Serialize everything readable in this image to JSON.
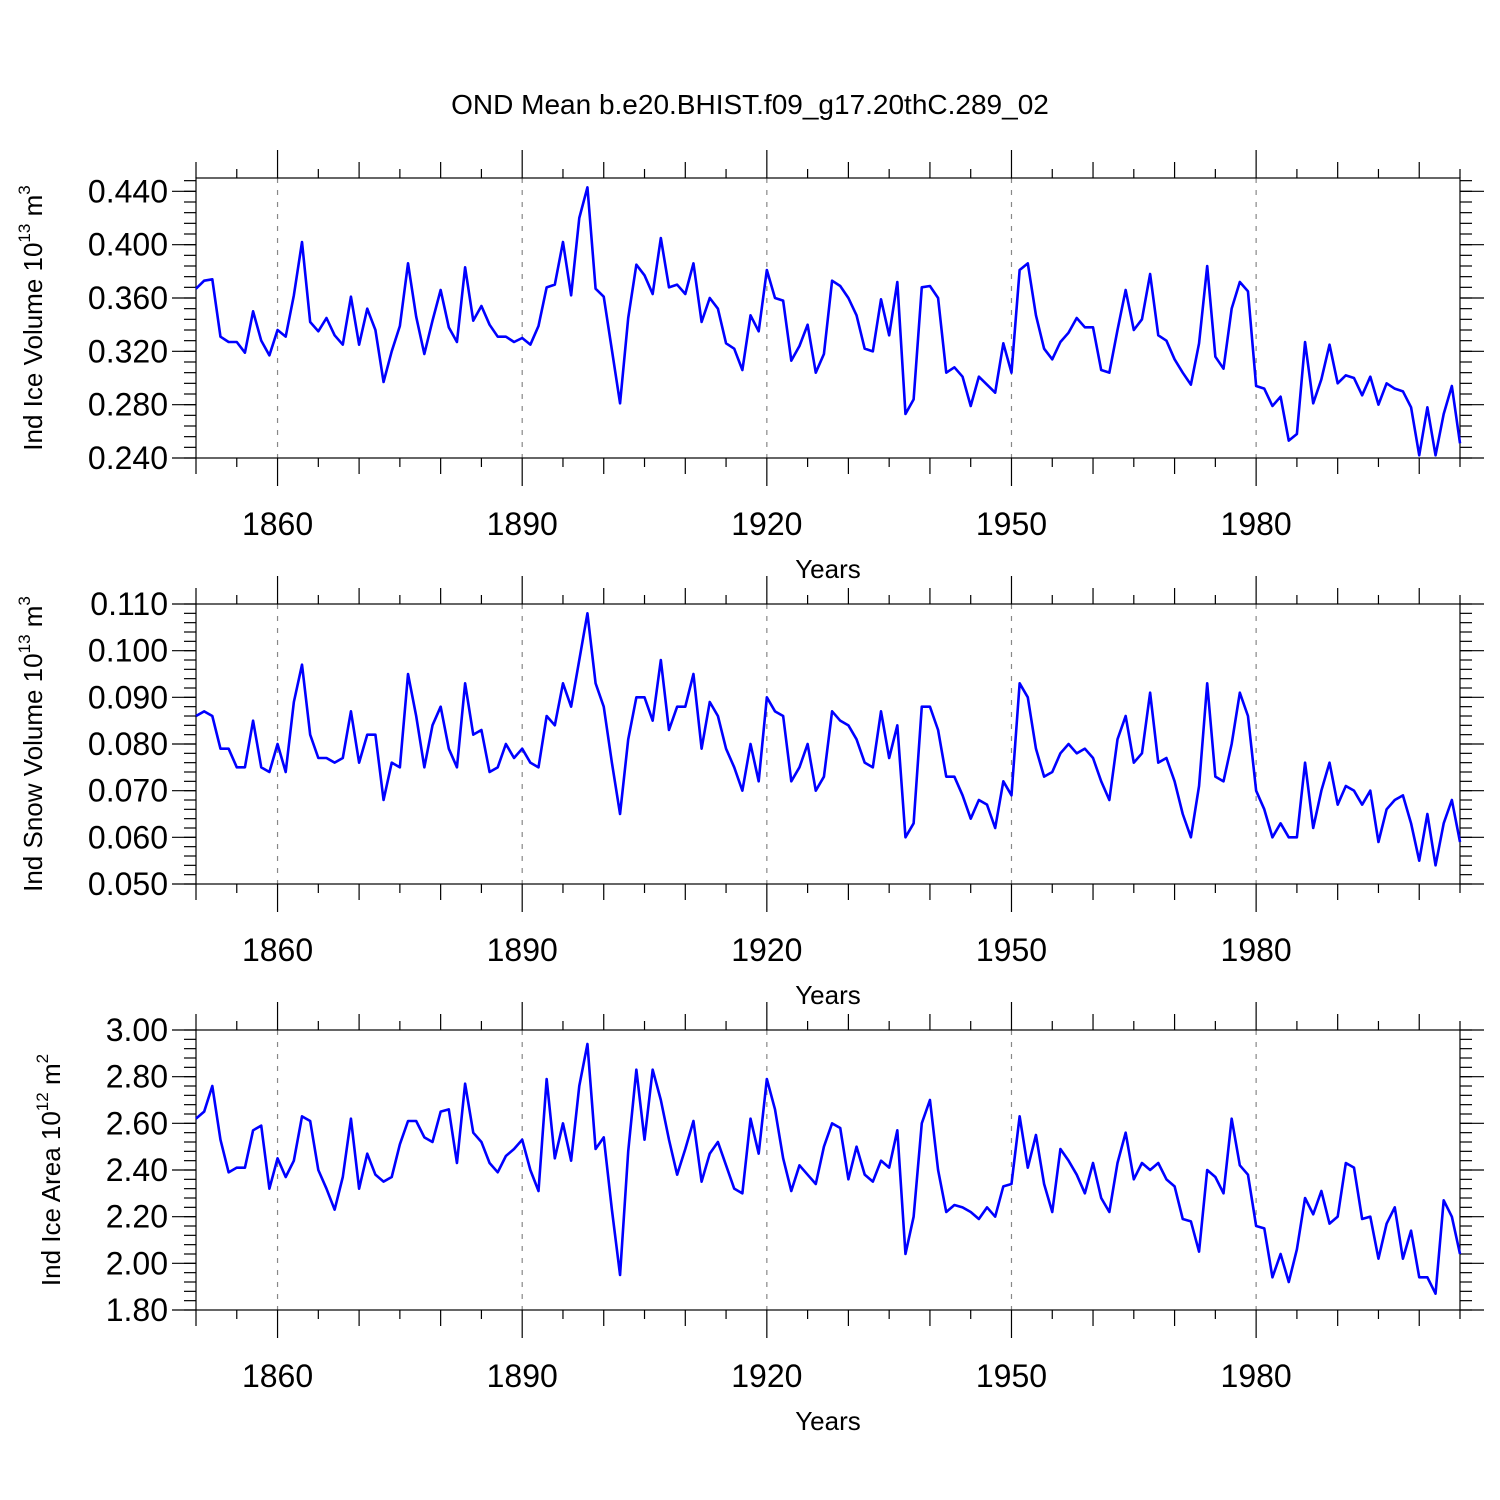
{
  "title": "OND Mean b.e20.BHIST.f09_g17.20thC.289_02",
  "line_color": "#0000ff",
  "chart_data": [
    {
      "type": "line",
      "ylabel": "Ind Ice Volume 10",
      "ylabel_exp": "13",
      "ylabel_unit": "m",
      "ylabel_unit_exp": "3",
      "xlabel": "Years",
      "xlim": [
        1850,
        2005
      ],
      "ylim": [
        0.24,
        0.45
      ],
      "yticks": [
        "0.240",
        "0.280",
        "0.320",
        "0.360",
        "0.400",
        "0.440"
      ],
      "yticks_values": [
        0.24,
        0.28,
        0.32,
        0.36,
        0.4,
        0.44
      ],
      "xticks": [
        "1860",
        "1890",
        "1920",
        "1950",
        "1980"
      ],
      "xticks_values": [
        1860,
        1890,
        1920,
        1950,
        1980
      ],
      "grid": "dashed vertical lines at x ticks",
      "x_start": 1850,
      "values": [
        0.367,
        0.373,
        0.374,
        0.331,
        0.327,
        0.327,
        0.319,
        0.35,
        0.328,
        0.317,
        0.336,
        0.331,
        0.362,
        0.402,
        0.342,
        0.335,
        0.345,
        0.332,
        0.325,
        0.361,
        0.325,
        0.352,
        0.336,
        0.297,
        0.32,
        0.339,
        0.386,
        0.346,
        0.318,
        0.343,
        0.366,
        0.338,
        0.327,
        0.383,
        0.343,
        0.354,
        0.34,
        0.331,
        0.331,
        0.327,
        0.33,
        0.325,
        0.339,
        0.368,
        0.37,
        0.402,
        0.362,
        0.42,
        0.443,
        0.367,
        0.361,
        0.321,
        0.281,
        0.345,
        0.385,
        0.377,
        0.363,
        0.405,
        0.368,
        0.37,
        0.363,
        0.386,
        0.342,
        0.36,
        0.352,
        0.326,
        0.322,
        0.306,
        0.347,
        0.335,
        0.381,
        0.36,
        0.358,
        0.313,
        0.324,
        0.34,
        0.304,
        0.318,
        0.373,
        0.369,
        0.36,
        0.347,
        0.322,
        0.32,
        0.359,
        0.332,
        0.372,
        0.273,
        0.284,
        0.368,
        0.369,
        0.36,
        0.304,
        0.308,
        0.301,
        0.279,
        0.301,
        0.295,
        0.289,
        0.326,
        0.304,
        0.381,
        0.386,
        0.347,
        0.322,
        0.314,
        0.327,
        0.334,
        0.345,
        0.338,
        0.338,
        0.306,
        0.304,
        0.336,
        0.366,
        0.336,
        0.344,
        0.378,
        0.332,
        0.328,
        0.314,
        0.304,
        0.295,
        0.326,
        0.384,
        0.316,
        0.307,
        0.352,
        0.372,
        0.365,
        0.294,
        0.292,
        0.279,
        0.286,
        0.253,
        0.258,
        0.327,
        0.281,
        0.299,
        0.325,
        0.296,
        0.302,
        0.3,
        0.287,
        0.301,
        0.28,
        0.296,
        0.292,
        0.29,
        0.278,
        0.242,
        0.278,
        0.242,
        0.273,
        0.294,
        0.251
      ]
    },
    {
      "type": "line",
      "ylabel": "Ind Snow Volume 10",
      "ylabel_exp": "13",
      "ylabel_unit": "m",
      "ylabel_unit_exp": "3",
      "xlabel": "Years",
      "xlim": [
        1850,
        2005
      ],
      "ylim": [
        0.05,
        0.11
      ],
      "yticks": [
        "0.050",
        "0.060",
        "0.070",
        "0.080",
        "0.090",
        "0.100",
        "0.110"
      ],
      "yticks_values": [
        0.05,
        0.06,
        0.07,
        0.08,
        0.09,
        0.1,
        0.11
      ],
      "xticks": [
        "1860",
        "1890",
        "1920",
        "1950",
        "1980"
      ],
      "xticks_values": [
        1860,
        1890,
        1920,
        1950,
        1980
      ],
      "grid": "dashed vertical lines at x ticks",
      "x_start": 1850,
      "values": [
        0.086,
        0.087,
        0.086,
        0.079,
        0.079,
        0.075,
        0.075,
        0.085,
        0.075,
        0.074,
        0.08,
        0.074,
        0.089,
        0.097,
        0.082,
        0.077,
        0.077,
        0.076,
        0.077,
        0.087,
        0.076,
        0.082,
        0.082,
        0.068,
        0.076,
        0.075,
        0.095,
        0.086,
        0.075,
        0.084,
        0.088,
        0.079,
        0.075,
        0.093,
        0.082,
        0.083,
        0.074,
        0.075,
        0.08,
        0.077,
        0.079,
        0.076,
        0.075,
        0.086,
        0.084,
        0.093,
        0.088,
        0.098,
        0.108,
        0.093,
        0.088,
        0.076,
        0.065,
        0.081,
        0.09,
        0.09,
        0.085,
        0.098,
        0.083,
        0.088,
        0.088,
        0.095,
        0.079,
        0.089,
        0.086,
        0.079,
        0.075,
        0.07,
        0.08,
        0.072,
        0.09,
        0.087,
        0.086,
        0.072,
        0.075,
        0.08,
        0.07,
        0.073,
        0.087,
        0.085,
        0.084,
        0.081,
        0.076,
        0.075,
        0.087,
        0.077,
        0.084,
        0.06,
        0.063,
        0.088,
        0.088,
        0.083,
        0.073,
        0.073,
        0.069,
        0.064,
        0.068,
        0.067,
        0.062,
        0.072,
        0.069,
        0.093,
        0.09,
        0.079,
        0.073,
        0.074,
        0.078,
        0.08,
        0.078,
        0.079,
        0.077,
        0.072,
        0.068,
        0.081,
        0.086,
        0.076,
        0.078,
        0.091,
        0.076,
        0.077,
        0.072,
        0.065,
        0.06,
        0.071,
        0.093,
        0.073,
        0.072,
        0.08,
        0.091,
        0.086,
        0.07,
        0.066,
        0.06,
        0.063,
        0.06,
        0.06,
        0.076,
        0.062,
        0.07,
        0.076,
        0.067,
        0.071,
        0.07,
        0.067,
        0.07,
        0.059,
        0.066,
        0.068,
        0.069,
        0.063,
        0.055,
        0.065,
        0.054,
        0.063,
        0.068,
        0.059
      ]
    },
    {
      "type": "line",
      "ylabel": "Ind Ice Area 10",
      "ylabel_exp": "12",
      "ylabel_unit": "m",
      "ylabel_unit_exp": "2",
      "xlabel": "Years",
      "xlim": [
        1850,
        2005
      ],
      "ylim": [
        1.8,
        3.0
      ],
      "yticks": [
        "1.80",
        "2.00",
        "2.20",
        "2.40",
        "2.60",
        "2.80",
        "3.00"
      ],
      "yticks_values": [
        1.8,
        2.0,
        2.2,
        2.4,
        2.6,
        2.8,
        3.0
      ],
      "xticks": [
        "1860",
        "1890",
        "1920",
        "1950",
        "1980"
      ],
      "xticks_values": [
        1860,
        1890,
        1920,
        1950,
        1980
      ],
      "grid": "dashed vertical lines at x ticks",
      "x_start": 1850,
      "values": [
        2.62,
        2.65,
        2.76,
        2.53,
        2.39,
        2.41,
        2.41,
        2.57,
        2.59,
        2.32,
        2.45,
        2.37,
        2.44,
        2.63,
        2.61,
        2.4,
        2.32,
        2.23,
        2.37,
        2.62,
        2.32,
        2.47,
        2.38,
        2.35,
        2.37,
        2.51,
        2.61,
        2.61,
        2.54,
        2.52,
        2.65,
        2.66,
        2.43,
        2.77,
        2.56,
        2.52,
        2.43,
        2.39,
        2.46,
        2.49,
        2.53,
        2.4,
        2.31,
        2.79,
        2.45,
        2.6,
        2.44,
        2.76,
        2.94,
        2.49,
        2.54,
        2.23,
        1.95,
        2.48,
        2.83,
        2.53,
        2.83,
        2.7,
        2.53,
        2.38,
        2.49,
        2.61,
        2.35,
        2.47,
        2.52,
        2.42,
        2.32,
        2.3,
        2.62,
        2.47,
        2.79,
        2.66,
        2.45,
        2.31,
        2.42,
        2.38,
        2.34,
        2.5,
        2.6,
        2.58,
        2.36,
        2.5,
        2.38,
        2.35,
        2.44,
        2.41,
        2.57,
        2.04,
        2.2,
        2.6,
        2.7,
        2.4,
        2.22,
        2.25,
        2.24,
        2.22,
        2.19,
        2.24,
        2.2,
        2.33,
        2.34,
        2.63,
        2.41,
        2.55,
        2.34,
        2.22,
        2.49,
        2.44,
        2.38,
        2.3,
        2.43,
        2.28,
        2.22,
        2.43,
        2.56,
        2.36,
        2.43,
        2.4,
        2.43,
        2.36,
        2.33,
        2.19,
        2.18,
        2.05,
        2.4,
        2.37,
        2.3,
        2.62,
        2.42,
        2.38,
        2.16,
        2.15,
        1.94,
        2.04,
        1.92,
        2.06,
        2.28,
        2.21,
        2.31,
        2.17,
        2.2,
        2.43,
        2.41,
        2.19,
        2.2,
        2.02,
        2.17,
        2.24,
        2.02,
        2.14,
        1.94,
        1.94,
        1.87,
        2.27,
        2.2,
        2.04
      ]
    }
  ]
}
